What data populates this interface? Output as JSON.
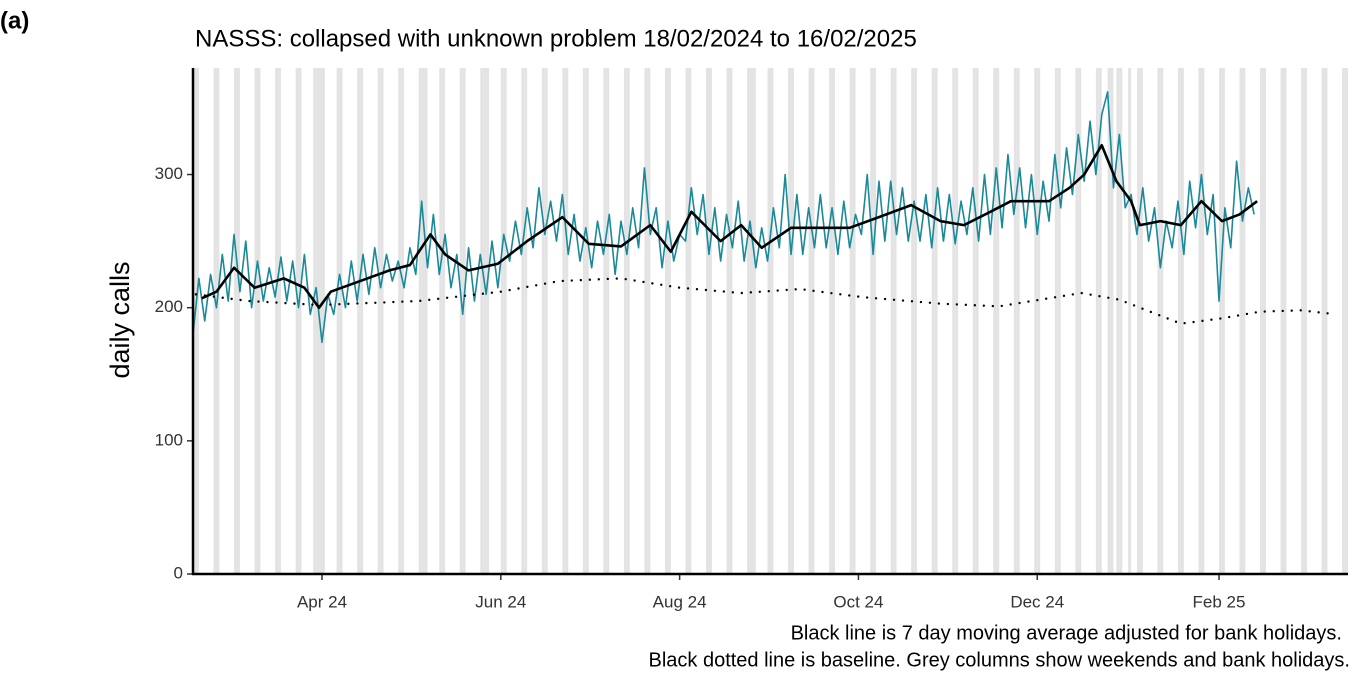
{
  "panel_label": "(a)",
  "chart_data": {
    "type": "line",
    "title": "NASSS: collapsed with unknown problem 18/02/2024 to 16/02/2025",
    "y_label": "daily calls",
    "notes": [
      "Black line is 7 day moving average adjusted for bank holidays.",
      "Black dotted line is baseline. Grey columns show weekends and bank holidays."
    ],
    "xlim": [
      0,
      394
    ],
    "xticks": [
      {
        "value": 44,
        "label": "Apr 24"
      },
      {
        "value": 105,
        "label": "Jun 24"
      },
      {
        "value": 166,
        "label": "Aug 24"
      },
      {
        "value": 227,
        "label": "Oct 24"
      },
      {
        "value": 288,
        "label": "Dec 24"
      },
      {
        "value": 350,
        "label": "Feb 25"
      }
    ],
    "ylim": [
      0,
      380
    ],
    "yticks": [
      0,
      100,
      200,
      300
    ],
    "shade_color": "#e3e3e3",
    "shaded_days": [
      0,
      1,
      7,
      8,
      14,
      15,
      21,
      22,
      28,
      29,
      35,
      36,
      41,
      42,
      43,
      44,
      49,
      50,
      56,
      57,
      63,
      64,
      70,
      71,
      77,
      78,
      79,
      84,
      85,
      91,
      92,
      98,
      99,
      100,
      105,
      106,
      112,
      113,
      119,
      120,
      126,
      127,
      133,
      134,
      140,
      141,
      147,
      148,
      154,
      155,
      161,
      162,
      168,
      169,
      175,
      176,
      182,
      183,
      189,
      190,
      191,
      196,
      197,
      203,
      204,
      210,
      211,
      217,
      218,
      224,
      225,
      231,
      232,
      238,
      239,
      245,
      246,
      252,
      253,
      259,
      260,
      266,
      267,
      273,
      274,
      280,
      281,
      287,
      288,
      294,
      295,
      301,
      302,
      308,
      309,
      312,
      313,
      315,
      316,
      319,
      322,
      323,
      329,
      330,
      336,
      337,
      343,
      344,
      350,
      351,
      357,
      358,
      364,
      365,
      371,
      372,
      378,
      379,
      385,
      386,
      392,
      393
    ],
    "series": [
      {
        "color": "#1a8a9a",
        "style": "solid",
        "width": 1.6,
        "x": [
          0,
          2,
          4,
          6,
          8,
          10,
          12,
          14,
          16,
          18,
          20,
          22,
          24,
          26,
          28,
          30,
          32,
          34,
          36,
          38,
          40,
          42,
          44,
          46,
          48,
          50,
          52,
          54,
          56,
          58,
          60,
          62,
          64,
          66,
          68,
          70,
          72,
          74,
          76,
          78,
          80,
          82,
          84,
          86,
          88,
          90,
          92,
          94,
          96,
          98,
          100,
          102,
          104,
          106,
          108,
          110,
          112,
          114,
          116,
          118,
          120,
          122,
          124,
          126,
          128,
          130,
          132,
          134,
          136,
          138,
          140,
          142,
          144,
          146,
          148,
          150,
          152,
          154,
          156,
          158,
          160,
          162,
          164,
          166,
          168,
          170,
          172,
          174,
          176,
          178,
          180,
          182,
          184,
          186,
          188,
          190,
          192,
          194,
          196,
          198,
          200,
          202,
          204,
          206,
          208,
          210,
          212,
          214,
          216,
          218,
          220,
          222,
          224,
          226,
          228,
          230,
          232,
          234,
          236,
          238,
          240,
          242,
          244,
          246,
          248,
          250,
          252,
          254,
          256,
          258,
          260,
          262,
          264,
          266,
          268,
          270,
          272,
          274,
          276,
          278,
          280,
          282,
          284,
          286,
          288,
          290,
          292,
          294,
          296,
          298,
          300,
          302,
          304,
          306,
          308,
          310,
          312,
          314,
          316,
          318,
          320,
          322,
          324,
          326,
          328,
          330,
          332,
          334,
          336,
          338,
          340,
          342,
          344,
          346,
          348,
          350,
          352,
          354,
          356,
          358,
          360,
          362
        ],
        "values": [
          180,
          222,
          190,
          225,
          200,
          240,
          205,
          255,
          212,
          250,
          200,
          235,
          205,
          230,
          208,
          238,
          205,
          235,
          200,
          240,
          195,
          215,
          174,
          210,
          195,
          225,
          200,
          235,
          205,
          240,
          210,
          245,
          215,
          240,
          220,
          235,
          215,
          245,
          225,
          280,
          230,
          270,
          225,
          255,
          215,
          240,
          195,
          245,
          205,
          240,
          210,
          250,
          215,
          255,
          235,
          265,
          240,
          275,
          245,
          290,
          255,
          280,
          250,
          285,
          240,
          270,
          235,
          260,
          230,
          265,
          240,
          270,
          225,
          265,
          240,
          275,
          245,
          305,
          255,
          275,
          230,
          265,
          235,
          255,
          250,
          290,
          255,
          285,
          240,
          275,
          235,
          270,
          245,
          280,
          235,
          265,
          230,
          260,
          235,
          275,
          245,
          300,
          240,
          285,
          240,
          275,
          245,
          285,
          245,
          275,
          240,
          280,
          245,
          270,
          255,
          300,
          240,
          295,
          250,
          295,
          255,
          290,
          250,
          280,
          250,
          285,
          245,
          290,
          250,
          285,
          248,
          280,
          255,
          290,
          250,
          300,
          255,
          305,
          260,
          315,
          270,
          305,
          260,
          300,
          255,
          295,
          265,
          315,
          275,
          320,
          285,
          330,
          295,
          340,
          300,
          345,
          362,
          290,
          330,
          275,
          285,
          255,
          290,
          250,
          275,
          230,
          265,
          245,
          280,
          240,
          295,
          260,
          300,
          255,
          285,
          205,
          275,
          245,
          310,
          265,
          290,
          270
        ]
      },
      {
        "color": "#000000",
        "style": "solid",
        "width": 2.6,
        "x": [
          3,
          8,
          14,
          21,
          31,
          38,
          43,
          47,
          57,
          67,
          74,
          81,
          86,
          94,
          104,
          114,
          126,
          135,
          146,
          156,
          163,
          170,
          180,
          187,
          194,
          204,
          214,
          224,
          234,
          245,
          255,
          263,
          272,
          279,
          286,
          292,
          299,
          304,
          310,
          315,
          320,
          323,
          330,
          337,
          344,
          351,
          357,
          363
        ],
        "values": [
          207,
          212,
          230,
          215,
          222,
          215,
          200,
          212,
          220,
          228,
          232,
          255,
          240,
          228,
          233,
          250,
          268,
          248,
          246,
          262,
          242,
          272,
          250,
          262,
          245,
          260,
          260,
          260,
          268,
          277,
          265,
          262,
          272,
          280,
          280,
          280,
          290,
          300,
          322,
          295,
          280,
          262,
          265,
          262,
          280,
          265,
          270,
          280
        ]
      },
      {
        "color": "#000000",
        "style": "dotted",
        "width": 2.4,
        "x": [
          1,
          19,
          43,
          77,
          105,
          125,
          146,
          166,
          187,
          207,
          228,
          255,
          275,
          289,
          303,
          316,
          337,
          351,
          364,
          378,
          390
        ],
        "values": [
          210,
          205,
          202,
          205,
          212,
          220,
          222,
          215,
          211,
          214,
          208,
          203,
          201,
          206,
          211,
          206,
          188,
          192,
          197,
          198,
          195
        ]
      }
    ]
  }
}
